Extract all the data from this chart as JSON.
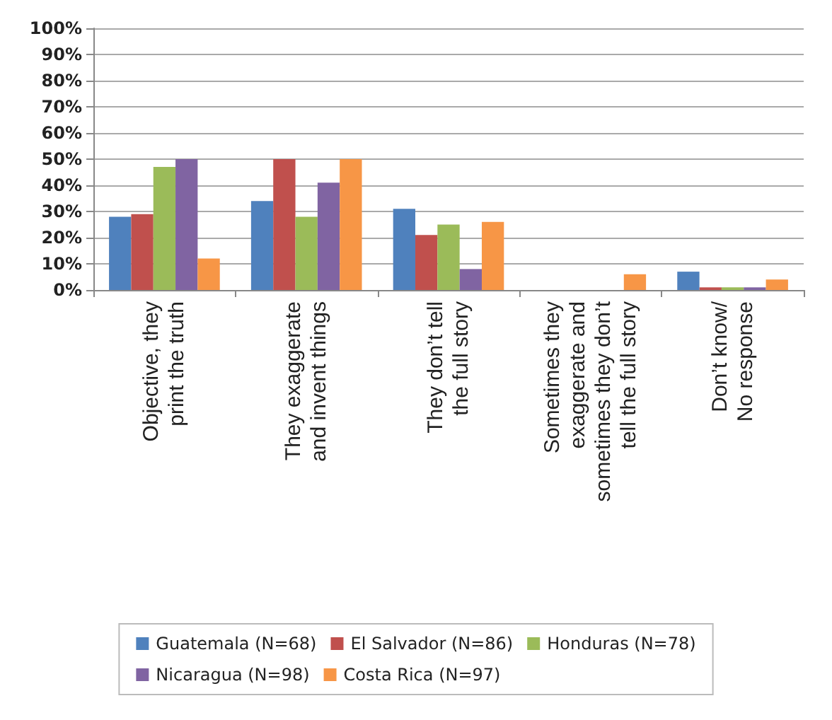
{
  "chart_data": {
    "type": "bar",
    "categories": [
      "Objective, they\nprint the truth",
      "They exaggerate\nand invent things",
      "They don’t tell\nthe full story",
      "Sometimes they\nexaggerate and\nsometimes they don’t\ntell the full story",
      "Don’t know/\nNo response"
    ],
    "series": [
      {
        "name": "Guatemala (N=68)",
        "color": "#4f81bd",
        "values": [
          28,
          34,
          31,
          0,
          7
        ]
      },
      {
        "name": "El Salvador (N=86)",
        "color": "#c0504d",
        "values": [
          29,
          50,
          21,
          0,
          1
        ]
      },
      {
        "name": "Honduras (N=78)",
        "color": "#9bbb59",
        "values": [
          47,
          28,
          25,
          0,
          1
        ]
      },
      {
        "name": "Nicaragua (N=98)",
        "color": "#8064a2",
        "values": [
          50,
          41,
          8,
          0,
          1
        ]
      },
      {
        "name": "Costa Rica (N=97)",
        "color": "#f79646",
        "values": [
          12,
          50,
          26,
          6,
          4
        ]
      }
    ],
    "ylim": [
      0,
      100
    ],
    "yticks": [
      {
        "value": 0,
        "label": "0%"
      },
      {
        "value": 10,
        "label": "10%"
      },
      {
        "value": 20,
        "label": "20%"
      },
      {
        "value": 30,
        "label": "30%"
      },
      {
        "value": 40,
        "label": "40%"
      },
      {
        "value": 50,
        "label": "50%"
      },
      {
        "value": 60,
        "label": "60%"
      },
      {
        "value": 70,
        "label": "70%"
      },
      {
        "value": 80,
        "label": "80%"
      },
      {
        "value": 90,
        "label": "90%"
      },
      {
        "value": 100,
        "label": "100%"
      }
    ],
    "grid": "y",
    "legend": "bottom"
  }
}
